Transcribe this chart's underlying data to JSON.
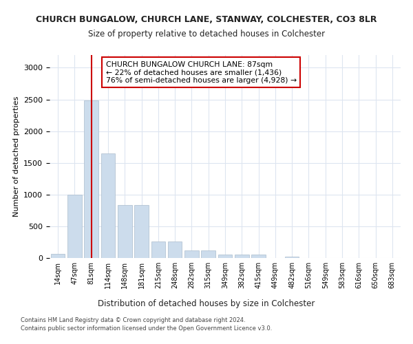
{
  "title": "CHURCH BUNGALOW, CHURCH LANE, STANWAY, COLCHESTER, CO3 8LR",
  "subtitle": "Size of property relative to detached houses in Colchester",
  "xlabel": "Distribution of detached houses by size in Colchester",
  "ylabel": "Number of detached properties",
  "bar_color": "#ccdcec",
  "bar_edge_color": "#aabccc",
  "grid_color": "#dde5f0",
  "categories": [
    "14sqm",
    "47sqm",
    "81sqm",
    "114sqm",
    "148sqm",
    "181sqm",
    "215sqm",
    "248sqm",
    "282sqm",
    "315sqm",
    "349sqm",
    "382sqm",
    "415sqm",
    "449sqm",
    "482sqm",
    "516sqm",
    "549sqm",
    "583sqm",
    "616sqm",
    "650sqm",
    "683sqm"
  ],
  "values": [
    60,
    1000,
    2480,
    1650,
    840,
    840,
    260,
    260,
    115,
    115,
    50,
    50,
    50,
    0,
    20,
    0,
    0,
    0,
    0,
    0,
    0
  ],
  "ylim": [
    0,
    3200
  ],
  "yticks": [
    0,
    500,
    1000,
    1500,
    2000,
    2500,
    3000
  ],
  "property_bin_index": 2,
  "red_line_color": "#cc0000",
  "annotation_text": "CHURCH BUNGALOW CHURCH LANE: 87sqm\n← 22% of detached houses are smaller (1,436)\n76% of semi-detached houses are larger (4,928) →",
  "annotation_box_color": "#ffffff",
  "annotation_box_edge": "#cc0000",
  "footer1": "Contains HM Land Registry data © Crown copyright and database right 2024.",
  "footer2": "Contains public sector information licensed under the Open Government Licence v3.0."
}
